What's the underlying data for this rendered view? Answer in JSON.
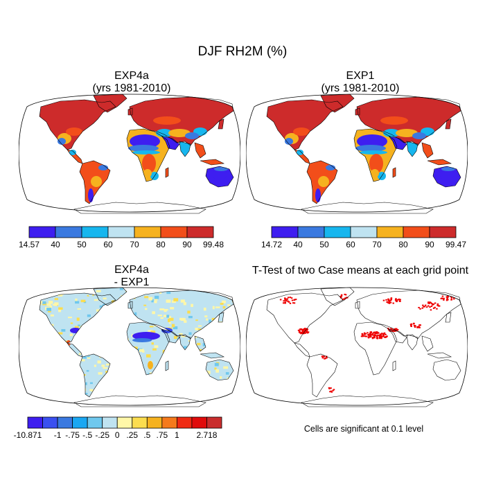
{
  "figure": {
    "title": "DJF RH2M (%)"
  },
  "panels": [
    {
      "id": "exp4a",
      "title_line1": "EXP4a",
      "title_line2": "(yrs 1981-2010)",
      "colorbar": {
        "labels": [
          "14.57",
          "40",
          "50",
          "60",
          "70",
          "80",
          "90",
          "99.48"
        ],
        "colors": [
          "#3e1ef0",
          "#3a79e0",
          "#17b6ee",
          "#bfe3f1",
          "#f6b21f",
          "#f24e1a",
          "#cd2b2b"
        ]
      }
    },
    {
      "id": "exp1",
      "title_line1": "EXP1",
      "title_line2": "(yrs 1981-2010)",
      "colorbar": {
        "labels": [
          "14.72",
          "40",
          "50",
          "60",
          "70",
          "80",
          "90",
          "99.47"
        ],
        "colors": [
          "#3e1ef0",
          "#3a79e0",
          "#17b6ee",
          "#bfe3f1",
          "#f6b21f",
          "#f24e1a",
          "#cd2b2b"
        ]
      }
    },
    {
      "id": "diff",
      "title_line1": "EXP4a",
      "title_line2": "- EXP1",
      "colorbar": {
        "labels": [
          "-10.871",
          "-1",
          "-.75",
          "-.5",
          "-.25",
          "0",
          ".25",
          ".5",
          ".75",
          "1",
          "2.718"
        ],
        "label_slots": [
          0,
          2,
          3,
          4,
          5,
          6,
          7,
          8,
          9,
          10,
          12
        ],
        "colors": [
          "#3e1ef0",
          "#3a50f0",
          "#3a79e0",
          "#1aa7f2",
          "#6fc8ee",
          "#bfe3f1",
          "#fff7a8",
          "#fbdd4f",
          "#f6b21f",
          "#f57a1c",
          "#ef2a12",
          "#e00b0b",
          "#c92d2d"
        ]
      }
    },
    {
      "id": "ttest",
      "title_line1": "T-Test of two Case means at each grid point",
      "note": "Cells are significant at 0.1 level",
      "sig_color": "#ee0000"
    }
  ],
  "map_colors": {
    "ocean": "#ffffff",
    "coast": "#000000",
    "high": "#cd2b2b",
    "orange_red": "#f24e1a",
    "orange": "#f6b21f",
    "light_blue": "#bfe3f1",
    "cyan": "#17b6ee",
    "blue": "#3a79e0",
    "deep_blue": "#3e1ef0",
    "diff_neutral": "#bfe3f1",
    "diff_yellow": "#fff7a8",
    "diff_sky": "#6fc8ee"
  }
}
